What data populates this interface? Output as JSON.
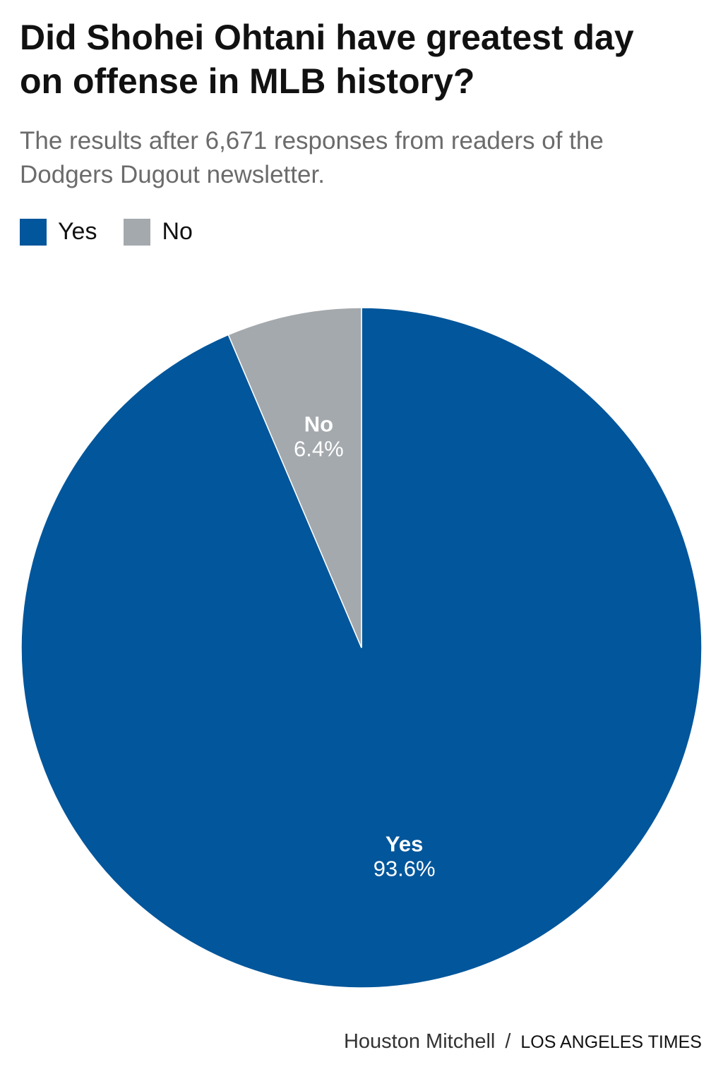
{
  "chart_data": {
    "type": "pie",
    "title": "Did Shohei Ohtani have greatest day on offense in MLB history?",
    "subtitle": "The results after 6,671 responses from readers of the Dodgers Dugout newsletter.",
    "categories": [
      "Yes",
      "No"
    ],
    "values": [
      93.6,
      6.4
    ],
    "value_labels": [
      "93.6%",
      "6.4%"
    ],
    "colors": [
      "#02569b",
      "#a4a9ad"
    ],
    "legend": "top-left",
    "credit": {
      "author": "Houston Mitchell",
      "separator": "/",
      "publisher": "LOS ANGELES TIMES"
    }
  }
}
